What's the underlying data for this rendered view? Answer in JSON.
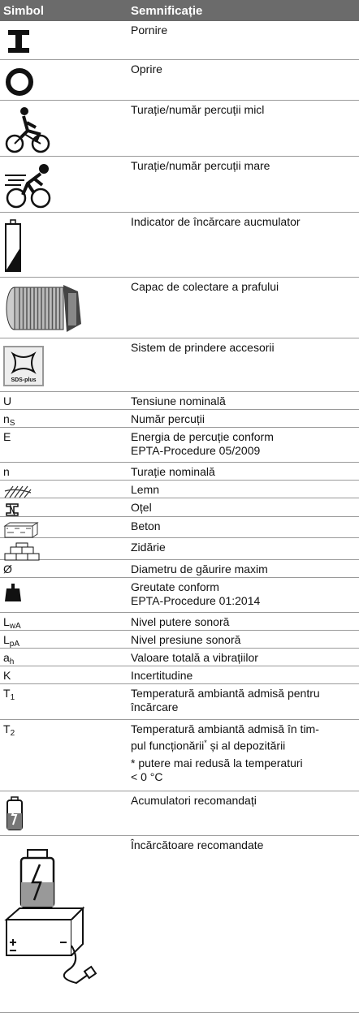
{
  "header": {
    "symbol": "Simbol",
    "meaning": "Semnificație"
  },
  "rows": [
    {
      "lines": [
        "Pornire"
      ]
    },
    {
      "lines": [
        "Oprire"
      ]
    },
    {
      "lines": [
        "Turație/număr percuții micl"
      ]
    },
    {
      "lines": [
        "Turație/număr percuții mare"
      ]
    },
    {
      "lines": [
        "Indicator de încărcare aucmulator"
      ]
    },
    {
      "lines": [
        "Capac de colectare a prafului"
      ]
    },
    {
      "icon_label": "SDS-plus",
      "lines": [
        "Sistem de prindere accesorii"
      ]
    },
    {
      "symbol": "U",
      "lines": [
        "Tensiune nominală"
      ]
    },
    {
      "symbol": "n",
      "symbol_sub": "S",
      "lines": [
        "Număr percuții"
      ]
    },
    {
      "symbol": "E",
      "lines": [
        "Energia de percuție conform",
        "EPTA-Procedure 05/2009"
      ]
    },
    {
      "symbol": "n",
      "lines": [
        "Turație nominală"
      ]
    },
    {
      "lines": [
        "Lemn"
      ]
    },
    {
      "lines": [
        "Oțel"
      ]
    },
    {
      "lines": [
        "Beton"
      ]
    },
    {
      "lines": [
        "Zidărie"
      ]
    },
    {
      "symbol": "Ø",
      "lines": [
        "Diametru de găurire maxim"
      ]
    },
    {
      "lines": [
        "Greutate conform",
        "EPTA-Procedure 01:2014"
      ]
    },
    {
      "symbol": "L",
      "symbol_sub": "wA",
      "lines": [
        "Nivel putere sonoră"
      ]
    },
    {
      "symbol": "L",
      "symbol_sub": "pA",
      "lines": [
        "Nivel presiune sonoră"
      ]
    },
    {
      "symbol": "a",
      "symbol_sub": "h",
      "lines": [
        "Valoare totală a vibrațiilor"
      ]
    },
    {
      "symbol": "K",
      "lines": [
        "Incertitudine"
      ]
    },
    {
      "symbol": "T",
      "symbol_sub": "1",
      "lines": [
        "Temperatură ambiantă admisă pentru",
        "încărcare"
      ]
    },
    {
      "symbol": "T",
      "symbol_sub": "2",
      "lines": [
        "Temperatură ambiantă admisă în tim-",
        "pul funcționării"
      ],
      "sup": "*",
      "after": " și al depozitării",
      "note": [
        "* putere mai redusă la temperaturi",
        "< 0 °C"
      ]
    },
    {
      "lines": [
        "Acumulatori recomandați"
      ]
    },
    {
      "lines": [
        "Încărcătoare recomandate"
      ]
    }
  ]
}
